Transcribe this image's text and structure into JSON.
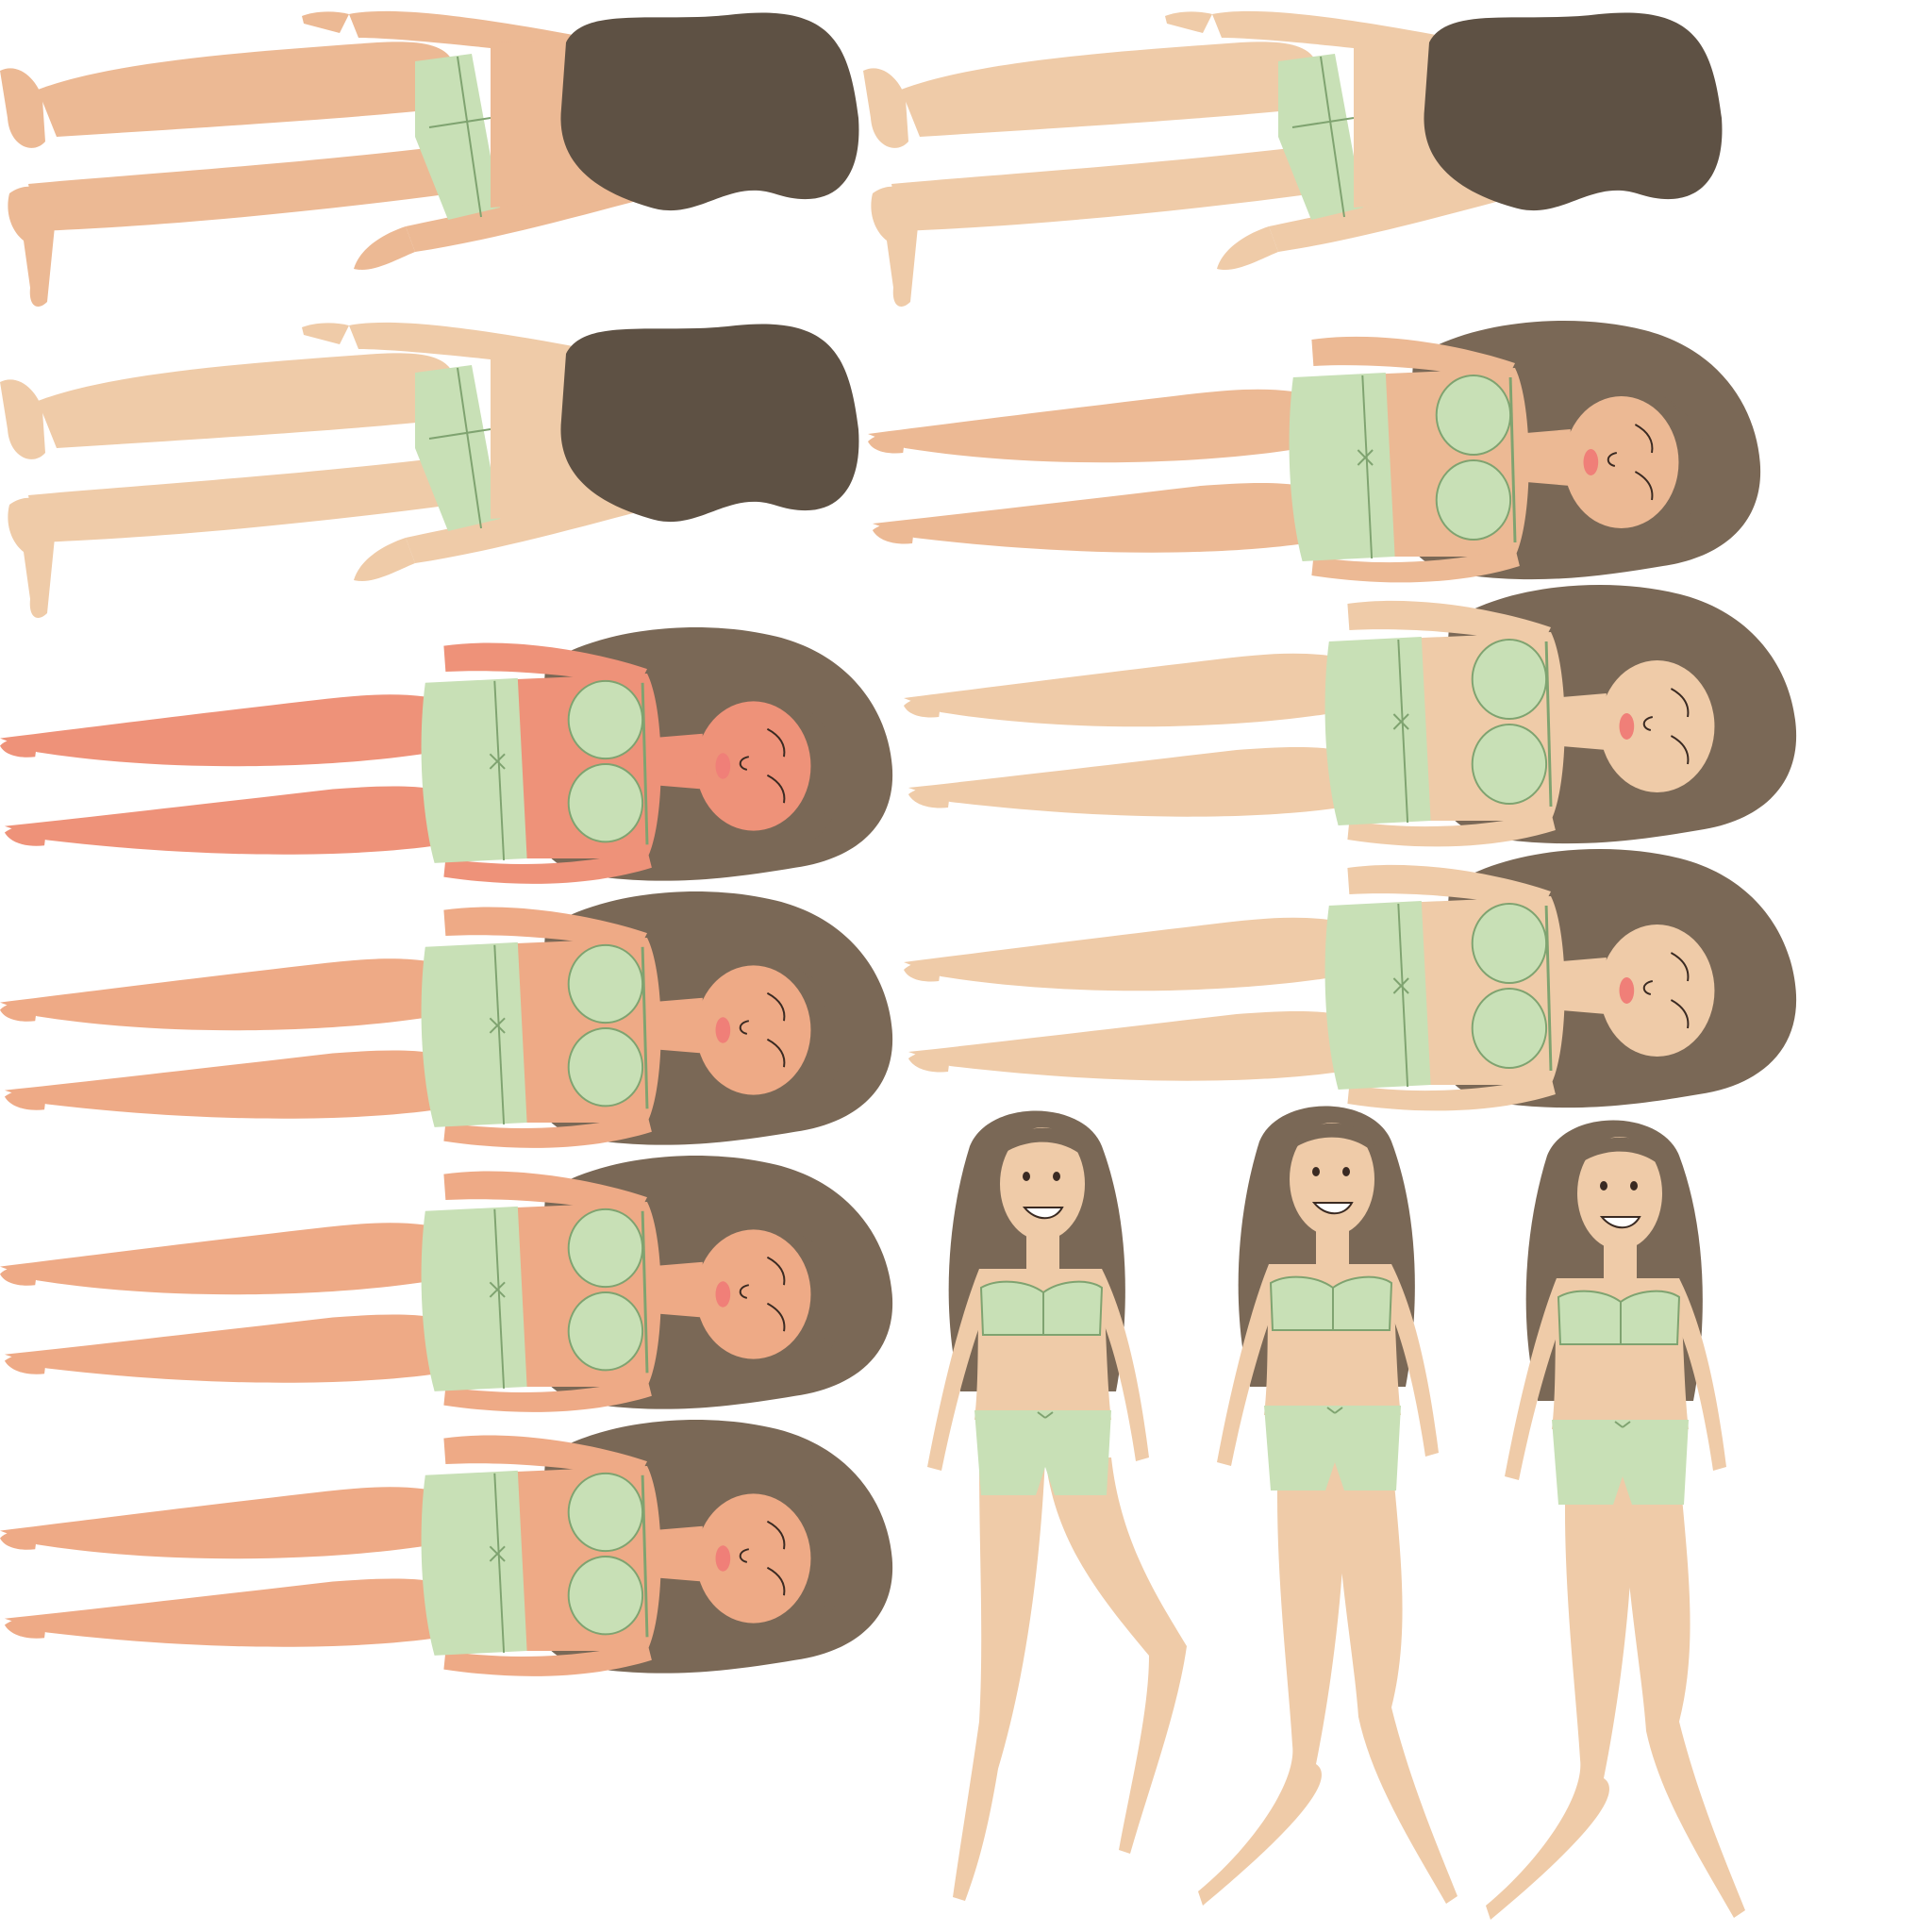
{
  "colors": {
    "background": "#ffffff",
    "hair": "#7a6856",
    "hair_back": "#5e5144",
    "lingerie": "#c8e0b6",
    "lingerie_line": "#7fa370",
    "skin_tones": {
      "light": "#efcba8",
      "tan": "#ecb994",
      "peach": "#eeaa86",
      "red": "#ee9279"
    }
  },
  "sprites": [
    {
      "pose": "lying-back-view",
      "skin": "tan"
    },
    {
      "pose": "lying-back-view",
      "skin": "light"
    },
    {
      "pose": "lying-back-view",
      "skin": "light"
    },
    {
      "pose": "lying-front-view",
      "skin": "tan"
    },
    {
      "pose": "lying-front-view",
      "skin": "red"
    },
    {
      "pose": "lying-front-view",
      "skin": "light"
    },
    {
      "pose": "lying-front-view",
      "skin": "peach"
    },
    {
      "pose": "lying-front-view",
      "skin": "light"
    },
    {
      "pose": "lying-front-view",
      "skin": "peach"
    },
    {
      "pose": "lying-front-view",
      "skin": "peach"
    },
    {
      "pose": "standing-front-view",
      "skin": "light"
    },
    {
      "pose": "walking-front-view",
      "skin": "light"
    },
    {
      "pose": "walking-front-view",
      "skin": "light"
    }
  ]
}
